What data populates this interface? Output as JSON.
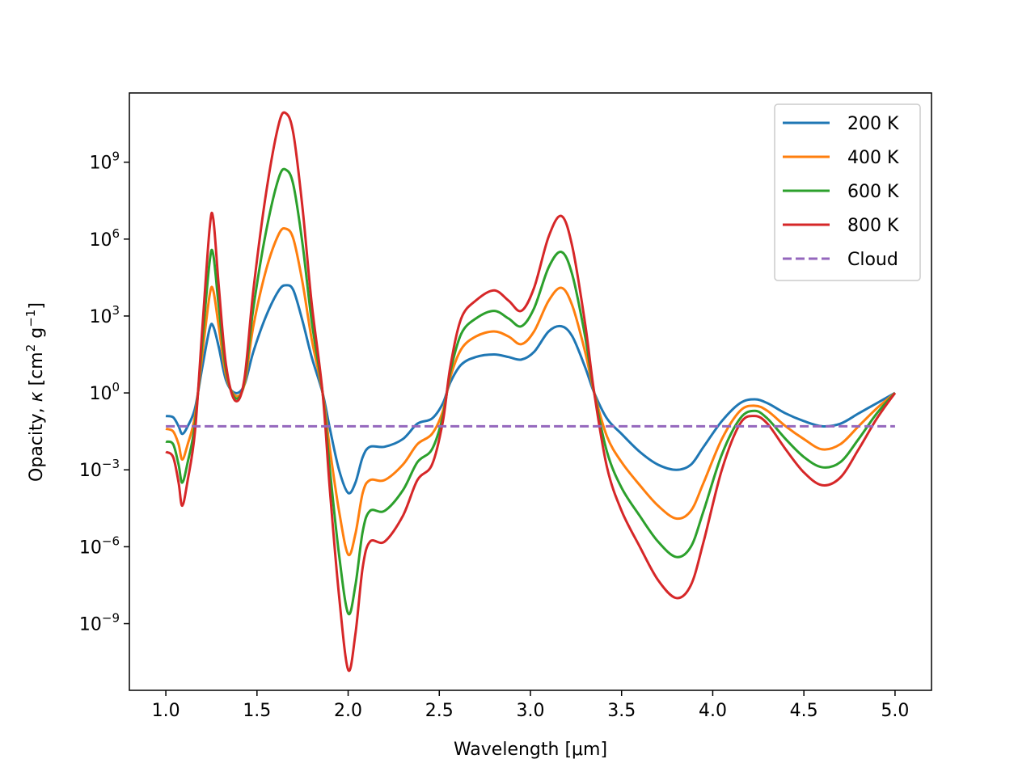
{
  "chart_data": {
    "type": "line",
    "title": "",
    "xlabel": "Wavelength [μm]",
    "ylabel": {
      "prefix": "Opacity, ",
      "symbol": "κ",
      "unit_open": " [cm",
      "unit_exp1": "2",
      "unit_mid": " g",
      "unit_exp2": "−1",
      "unit_close": "]"
    },
    "xscale": "linear",
    "yscale": "log",
    "xlim": [
      0.8,
      5.2
    ],
    "ylim_log10": [
      -11.6,
      11.7
    ],
    "grid": false,
    "legend_placement": "upper right",
    "xticks": [
      {
        "value": 1.0,
        "label": "1.0"
      },
      {
        "value": 1.5,
        "label": "1.5"
      },
      {
        "value": 2.0,
        "label": "2.0"
      },
      {
        "value": 2.5,
        "label": "2.5"
      },
      {
        "value": 3.0,
        "label": "3.0"
      },
      {
        "value": 3.5,
        "label": "3.5"
      },
      {
        "value": 4.0,
        "label": "4.0"
      },
      {
        "value": 4.5,
        "label": "4.5"
      },
      {
        "value": 5.0,
        "label": "5.0"
      }
    ],
    "yticks": [
      {
        "log10": 9,
        "base": "10",
        "exp": "9"
      },
      {
        "log10": 6,
        "base": "10",
        "exp": "6"
      },
      {
        "log10": 3,
        "base": "10",
        "exp": "3"
      },
      {
        "log10": 0,
        "base": "10",
        "exp": "0"
      },
      {
        "log10": -3,
        "base": "10",
        "exp": "−3"
      },
      {
        "log10": -6,
        "base": "10",
        "exp": "−6"
      },
      {
        "log10": -9,
        "base": "10",
        "exp": "−9"
      }
    ],
    "series": [
      {
        "name": "200 K",
        "color": "#1f77b4",
        "dash": "solid",
        "points_log10": [
          [
            1.0,
            -0.9
          ],
          [
            1.04,
            -0.95
          ],
          [
            1.07,
            -1.3
          ],
          [
            1.09,
            -1.6
          ],
          [
            1.12,
            -1.3
          ],
          [
            1.16,
            -0.6
          ],
          [
            1.2,
            1.0
          ],
          [
            1.24,
            2.5
          ],
          [
            1.26,
            2.6
          ],
          [
            1.29,
            1.8
          ],
          [
            1.33,
            0.5
          ],
          [
            1.38,
            0.0
          ],
          [
            1.43,
            0.3
          ],
          [
            1.48,
            1.6
          ],
          [
            1.55,
            3.0
          ],
          [
            1.62,
            4.0
          ],
          [
            1.66,
            4.2
          ],
          [
            1.7,
            4.0
          ],
          [
            1.75,
            2.8
          ],
          [
            1.8,
            1.4
          ],
          [
            1.86,
            0.0
          ],
          [
            1.9,
            -1.4
          ],
          [
            1.95,
            -3.0
          ],
          [
            2.0,
            -3.9
          ],
          [
            2.04,
            -3.5
          ],
          [
            2.08,
            -2.5
          ],
          [
            2.12,
            -2.1
          ],
          [
            2.2,
            -2.1
          ],
          [
            2.3,
            -1.8
          ],
          [
            2.38,
            -1.2
          ],
          [
            2.46,
            -1.0
          ],
          [
            2.52,
            -0.4
          ],
          [
            2.56,
            0.4
          ],
          [
            2.62,
            1.1
          ],
          [
            2.7,
            1.4
          ],
          [
            2.8,
            1.5
          ],
          [
            2.88,
            1.4
          ],
          [
            2.95,
            1.3
          ],
          [
            3.02,
            1.6
          ],
          [
            3.1,
            2.4
          ],
          [
            3.17,
            2.6
          ],
          [
            3.23,
            2.2
          ],
          [
            3.3,
            1.0
          ],
          [
            3.35,
            0.0
          ],
          [
            3.42,
            -1.0
          ],
          [
            3.5,
            -1.6
          ],
          [
            3.6,
            -2.3
          ],
          [
            3.7,
            -2.8
          ],
          [
            3.8,
            -3.0
          ],
          [
            3.88,
            -2.8
          ],
          [
            3.95,
            -2.1
          ],
          [
            4.05,
            -1.1
          ],
          [
            4.15,
            -0.4
          ],
          [
            4.23,
            -0.25
          ],
          [
            4.3,
            -0.4
          ],
          [
            4.4,
            -0.8
          ],
          [
            4.5,
            -1.1
          ],
          [
            4.6,
            -1.3
          ],
          [
            4.7,
            -1.2
          ],
          [
            4.8,
            -0.8
          ],
          [
            4.9,
            -0.4
          ],
          [
            5.0,
            0.0
          ]
        ]
      },
      {
        "name": "400 K",
        "color": "#ff7f0e",
        "dash": "solid",
        "points_log10": [
          [
            1.0,
            -1.4
          ],
          [
            1.04,
            -1.5
          ],
          [
            1.07,
            -2.0
          ],
          [
            1.09,
            -2.6
          ],
          [
            1.12,
            -2.0
          ],
          [
            1.16,
            -0.9
          ],
          [
            1.2,
            1.5
          ],
          [
            1.24,
            3.8
          ],
          [
            1.26,
            4.0
          ],
          [
            1.29,
            2.6
          ],
          [
            1.33,
            0.7
          ],
          [
            1.38,
            -0.1
          ],
          [
            1.43,
            0.3
          ],
          [
            1.48,
            2.6
          ],
          [
            1.55,
            4.8
          ],
          [
            1.62,
            6.2
          ],
          [
            1.66,
            6.4
          ],
          [
            1.7,
            6.0
          ],
          [
            1.75,
            4.3
          ],
          [
            1.8,
            2.1
          ],
          [
            1.86,
            0.0
          ],
          [
            1.9,
            -2.2
          ],
          [
            1.95,
            -4.6
          ],
          [
            2.0,
            -6.3
          ],
          [
            2.04,
            -5.5
          ],
          [
            2.08,
            -3.9
          ],
          [
            2.12,
            -3.4
          ],
          [
            2.2,
            -3.4
          ],
          [
            2.3,
            -2.8
          ],
          [
            2.38,
            -2.0
          ],
          [
            2.46,
            -1.6
          ],
          [
            2.52,
            -0.7
          ],
          [
            2.56,
            0.6
          ],
          [
            2.62,
            1.7
          ],
          [
            2.7,
            2.2
          ],
          [
            2.8,
            2.4
          ],
          [
            2.88,
            2.2
          ],
          [
            2.95,
            1.9
          ],
          [
            3.02,
            2.4
          ],
          [
            3.1,
            3.6
          ],
          [
            3.17,
            4.1
          ],
          [
            3.23,
            3.4
          ],
          [
            3.3,
            1.6
          ],
          [
            3.35,
            0.0
          ],
          [
            3.42,
            -1.7
          ],
          [
            3.5,
            -2.7
          ],
          [
            3.6,
            -3.6
          ],
          [
            3.7,
            -4.4
          ],
          [
            3.8,
            -4.9
          ],
          [
            3.88,
            -4.6
          ],
          [
            3.95,
            -3.5
          ],
          [
            4.05,
            -1.8
          ],
          [
            4.15,
            -0.7
          ],
          [
            4.23,
            -0.5
          ],
          [
            4.3,
            -0.7
          ],
          [
            4.4,
            -1.3
          ],
          [
            4.5,
            -1.8
          ],
          [
            4.6,
            -2.2
          ],
          [
            4.7,
            -2.0
          ],
          [
            4.8,
            -1.3
          ],
          [
            4.9,
            -0.6
          ],
          [
            5.0,
            0.0
          ]
        ]
      },
      {
        "name": "600 K",
        "color": "#2ca02c",
        "dash": "solid",
        "points_log10": [
          [
            1.0,
            -1.9
          ],
          [
            1.04,
            -2.0
          ],
          [
            1.07,
            -2.8
          ],
          [
            1.09,
            -3.5
          ],
          [
            1.12,
            -2.7
          ],
          [
            1.16,
            -1.2
          ],
          [
            1.2,
            2.0
          ],
          [
            1.24,
            5.1
          ],
          [
            1.26,
            5.4
          ],
          [
            1.29,
            3.4
          ],
          [
            1.33,
            0.9
          ],
          [
            1.38,
            -0.2
          ],
          [
            1.43,
            0.4
          ],
          [
            1.48,
            3.3
          ],
          [
            1.55,
            6.3
          ],
          [
            1.62,
            8.4
          ],
          [
            1.66,
            8.7
          ],
          [
            1.7,
            8.1
          ],
          [
            1.75,
            5.8
          ],
          [
            1.8,
            2.8
          ],
          [
            1.86,
            0.0
          ],
          [
            1.9,
            -3.0
          ],
          [
            1.95,
            -6.3
          ],
          [
            2.0,
            -8.6
          ],
          [
            2.04,
            -7.5
          ],
          [
            2.08,
            -5.4
          ],
          [
            2.12,
            -4.6
          ],
          [
            2.2,
            -4.6
          ],
          [
            2.3,
            -3.8
          ],
          [
            2.38,
            -2.7
          ],
          [
            2.46,
            -2.2
          ],
          [
            2.52,
            -0.9
          ],
          [
            2.56,
            0.8
          ],
          [
            2.62,
            2.3
          ],
          [
            2.7,
            2.9
          ],
          [
            2.8,
            3.2
          ],
          [
            2.88,
            2.9
          ],
          [
            2.95,
            2.6
          ],
          [
            3.02,
            3.3
          ],
          [
            3.1,
            4.9
          ],
          [
            3.17,
            5.5
          ],
          [
            3.23,
            4.6
          ],
          [
            3.3,
            2.2
          ],
          [
            3.35,
            0.0
          ],
          [
            3.42,
            -2.3
          ],
          [
            3.5,
            -3.7
          ],
          [
            3.6,
            -4.8
          ],
          [
            3.7,
            -5.8
          ],
          [
            3.8,
            -6.4
          ],
          [
            3.88,
            -6.0
          ],
          [
            3.95,
            -4.6
          ],
          [
            4.05,
            -2.4
          ],
          [
            4.15,
            -1.0
          ],
          [
            4.23,
            -0.7
          ],
          [
            4.3,
            -1.0
          ],
          [
            4.4,
            -1.8
          ],
          [
            4.5,
            -2.5
          ],
          [
            4.6,
            -2.9
          ],
          [
            4.7,
            -2.7
          ],
          [
            4.8,
            -1.8
          ],
          [
            4.9,
            -0.8
          ],
          [
            5.0,
            0.0
          ]
        ]
      },
      {
        "name": "800 K",
        "color": "#d62728",
        "dash": "solid",
        "points_log10": [
          [
            1.0,
            -2.3
          ],
          [
            1.04,
            -2.5
          ],
          [
            1.07,
            -3.5
          ],
          [
            1.09,
            -4.4
          ],
          [
            1.12,
            -3.4
          ],
          [
            1.16,
            -1.5
          ],
          [
            1.2,
            2.5
          ],
          [
            1.24,
            6.4
          ],
          [
            1.26,
            6.8
          ],
          [
            1.29,
            4.2
          ],
          [
            1.33,
            1.1
          ],
          [
            1.38,
            -0.3
          ],
          [
            1.43,
            0.5
          ],
          [
            1.48,
            4.0
          ],
          [
            1.55,
            7.8
          ],
          [
            1.62,
            10.5
          ],
          [
            1.66,
            10.9
          ],
          [
            1.7,
            10.1
          ],
          [
            1.75,
            7.2
          ],
          [
            1.8,
            3.5
          ],
          [
            1.86,
            0.0
          ],
          [
            1.9,
            -3.8
          ],
          [
            1.95,
            -7.9
          ],
          [
            2.0,
            -10.8
          ],
          [
            2.04,
            -9.4
          ],
          [
            2.08,
            -6.8
          ],
          [
            2.12,
            -5.8
          ],
          [
            2.2,
            -5.8
          ],
          [
            2.3,
            -4.8
          ],
          [
            2.38,
            -3.4
          ],
          [
            2.46,
            -2.8
          ],
          [
            2.52,
            -1.1
          ],
          [
            2.56,
            1.0
          ],
          [
            2.62,
            2.9
          ],
          [
            2.7,
            3.6
          ],
          [
            2.8,
            4.0
          ],
          [
            2.88,
            3.6
          ],
          [
            2.95,
            3.2
          ],
          [
            3.02,
            4.1
          ],
          [
            3.1,
            6.1
          ],
          [
            3.17,
            6.9
          ],
          [
            3.23,
            5.7
          ],
          [
            3.3,
            2.7
          ],
          [
            3.35,
            0.0
          ],
          [
            3.42,
            -2.9
          ],
          [
            3.5,
            -4.6
          ],
          [
            3.6,
            -6.0
          ],
          [
            3.7,
            -7.3
          ],
          [
            3.8,
            -8.0
          ],
          [
            3.88,
            -7.5
          ],
          [
            3.95,
            -5.8
          ],
          [
            4.05,
            -3.0
          ],
          [
            4.15,
            -1.2
          ],
          [
            4.23,
            -0.9
          ],
          [
            4.3,
            -1.2
          ],
          [
            4.4,
            -2.2
          ],
          [
            4.5,
            -3.1
          ],
          [
            4.6,
            -3.6
          ],
          [
            4.7,
            -3.3
          ],
          [
            4.8,
            -2.2
          ],
          [
            4.9,
            -1.0
          ],
          [
            5.0,
            0.0
          ]
        ]
      },
      {
        "name": "Cloud",
        "color": "#9467bd",
        "dash": "dashed",
        "points_log10": [
          [
            1.0,
            -1.3
          ],
          [
            5.0,
            -1.3
          ]
        ]
      }
    ]
  }
}
